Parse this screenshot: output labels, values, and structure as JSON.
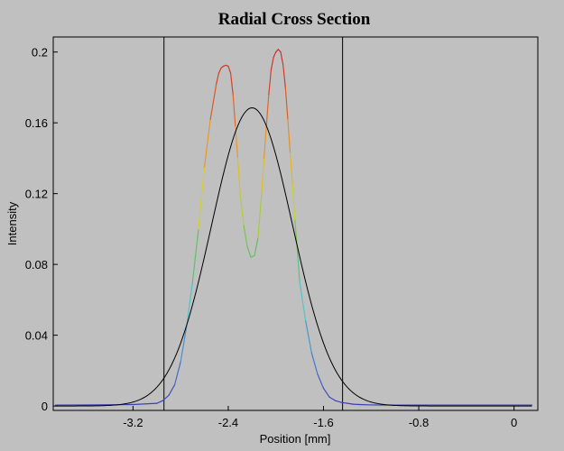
{
  "chart_data": {
    "type": "line",
    "title": "Radial Cross Section",
    "xlabel": "Position [mm]",
    "ylabel": "Intensity",
    "xlim": [
      -3.87,
      0.2
    ],
    "ylim": [
      -0.0025,
      0.2085
    ],
    "x_ticks": [
      "-3.2",
      "-2.4",
      "-1.6",
      "-0.8",
      "0"
    ],
    "y_ticks": [
      "0",
      "0.04",
      "0.08",
      "0.12",
      "0.16",
      "0.2"
    ],
    "grid": false,
    "legend": "none",
    "markers": [
      {
        "name": "left-boundary",
        "x": -2.94
      },
      {
        "name": "right-boundary",
        "x": -1.44
      }
    ],
    "series": [
      {
        "kind": "measured-profile",
        "colormap": "intensity-rainbow",
        "x": [
          -3.85,
          -3.6,
          -3.4,
          -3.2,
          -3.0,
          -2.95,
          -2.9,
          -2.85,
          -2.8,
          -2.75,
          -2.7,
          -2.65,
          -2.6,
          -2.55,
          -2.5,
          -2.48,
          -2.46,
          -2.44,
          -2.42,
          -2.4,
          -2.38,
          -2.36,
          -2.34,
          -2.32,
          -2.3,
          -2.27,
          -2.24,
          -2.21,
          -2.18,
          -2.15,
          -2.12,
          -2.1,
          -2.08,
          -2.06,
          -2.04,
          -2.02,
          -2.0,
          -1.98,
          -1.96,
          -1.94,
          -1.92,
          -1.9,
          -1.88,
          -1.86,
          -1.84,
          -1.82,
          -1.8,
          -1.75,
          -1.7,
          -1.65,
          -1.6,
          -1.55,
          -1.5,
          -1.45,
          -1.4,
          -1.35,
          -1.3,
          -1.2,
          -1.0,
          -0.8,
          -0.6,
          -0.4,
          -0.2,
          0.0,
          0.15
        ],
        "y": [
          0.0005,
          0.0006,
          0.0007,
          0.0008,
          0.0015,
          0.003,
          0.006,
          0.012,
          0.025,
          0.045,
          0.07,
          0.1,
          0.135,
          0.162,
          0.182,
          0.188,
          0.191,
          0.192,
          0.1925,
          0.192,
          0.188,
          0.176,
          0.158,
          0.14,
          0.12,
          0.102,
          0.09,
          0.084,
          0.085,
          0.095,
          0.12,
          0.14,
          0.158,
          0.176,
          0.19,
          0.197,
          0.2,
          0.2015,
          0.2,
          0.193,
          0.18,
          0.162,
          0.143,
          0.125,
          0.105,
          0.088,
          0.07,
          0.048,
          0.03,
          0.018,
          0.01,
          0.005,
          0.003,
          0.002,
          0.0015,
          0.001,
          0.0008,
          0.0006,
          0.0005,
          0.0005,
          0.0005,
          0.0005,
          0.0005,
          0.0005,
          0.0005
        ]
      },
      {
        "kind": "gaussian-fit",
        "color": "#000000",
        "amplitude": 0.1685,
        "center": -2.2,
        "sigma": 0.34,
        "x_start": -3.85,
        "x_end": 0.15
      }
    ]
  }
}
